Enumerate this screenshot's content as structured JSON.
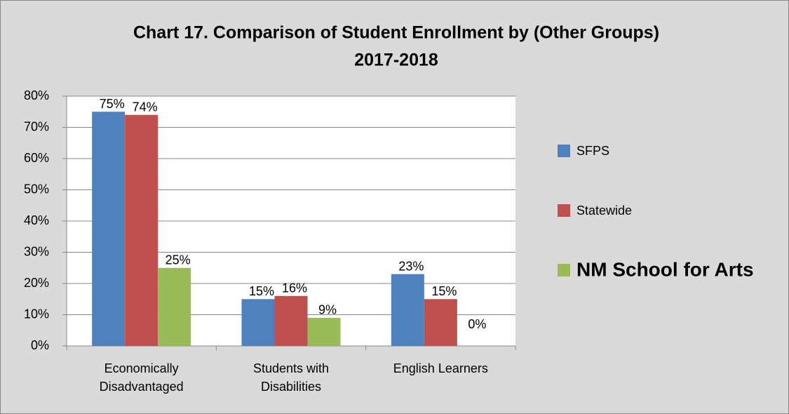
{
  "chart_data": {
    "type": "bar",
    "title": [
      "Chart 17. Comparison of Student Enrollment by (Other Groups)",
      "2017-2018"
    ],
    "categories": [
      "Economically Disadvantaged",
      "Students with Disabilities",
      "English Learners"
    ],
    "series": [
      {
        "name": "SFPS",
        "color": "#4f81bd",
        "values": [
          75,
          15,
          23
        ],
        "value_labels": [
          "75%",
          "15%",
          "23%"
        ]
      },
      {
        "name": "Statewide",
        "color": "#c0504d",
        "values": [
          74,
          16,
          15
        ],
        "value_labels": [
          "74%",
          "16%",
          "15%"
        ]
      },
      {
        "name": "NM School for Arts",
        "color": "#9bbb59",
        "values": [
          25,
          9,
          0
        ],
        "value_labels": [
          "25%",
          "9%",
          "0%"
        ]
      }
    ],
    "ylim": [
      0,
      80
    ],
    "yticks": [
      {
        "value": 0,
        "label": "0%"
      },
      {
        "value": 10,
        "label": "10%"
      },
      {
        "value": 20,
        "label": "20%"
      },
      {
        "value": 30,
        "label": "30%"
      },
      {
        "value": 40,
        "label": "40%"
      },
      {
        "value": 50,
        "label": "50%"
      },
      {
        "value": 60,
        "label": "60%"
      },
      {
        "value": 70,
        "label": "70%"
      },
      {
        "value": 80,
        "label": "80%"
      }
    ],
    "grid": true,
    "legend": "right"
  }
}
